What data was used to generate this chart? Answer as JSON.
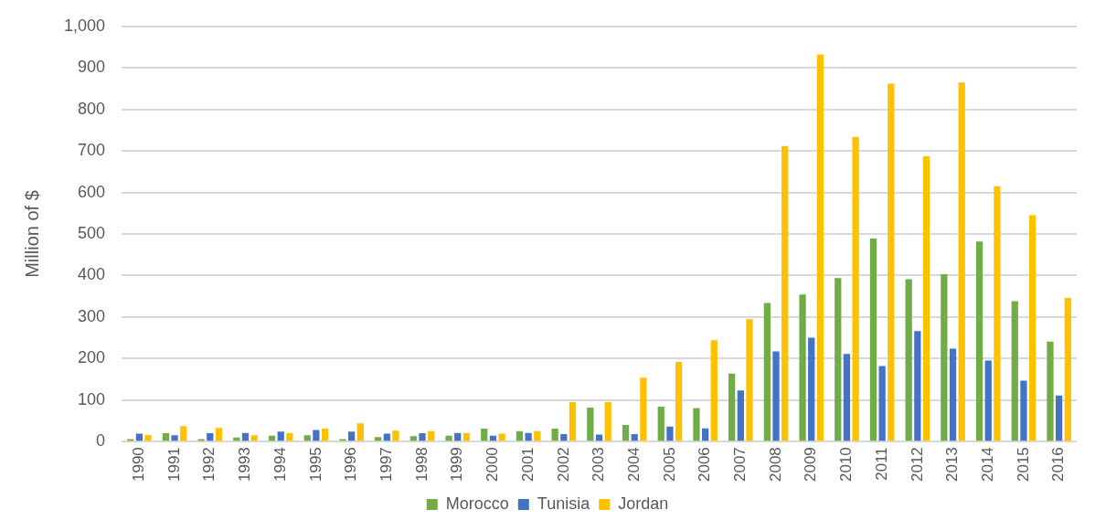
{
  "chart_data": {
    "type": "bar",
    "ylabel": "Million of $",
    "categories": [
      "1990",
      "1991",
      "1992",
      "1993",
      "1994",
      "1995",
      "1996",
      "1997",
      "1998",
      "1999",
      "2000",
      "2001",
      "2002",
      "2003",
      "2004",
      "2005",
      "2006",
      "2007",
      "2008",
      "2009",
      "2010",
      "2011",
      "2012",
      "2013",
      "2014",
      "2015",
      "2016"
    ],
    "series": [
      {
        "name": "Morocco",
        "color": "#70ad47",
        "values": [
          6,
          20,
          6,
          10,
          14,
          15,
          6,
          11,
          13,
          14,
          31,
          25,
          31,
          82,
          40,
          84,
          81,
          164,
          334,
          354,
          394,
          489,
          391,
          403,
          482,
          338,
          241
        ]
      },
      {
        "name": "Tunisia",
        "color": "#4472c4",
        "values": [
          19,
          15,
          20,
          21,
          24,
          28,
          24,
          19,
          20,
          21,
          14,
          21,
          18,
          17,
          18,
          36,
          32,
          123,
          217,
          250,
          211,
          182,
          266,
          224,
          195,
          147,
          111
        ]
      },
      {
        "name": "Jordan",
        "color": "#ffc000",
        "values": [
          16,
          37,
          33,
          15,
          21,
          31,
          44,
          26,
          25,
          21,
          19,
          25,
          95,
          95,
          154,
          192,
          244,
          295,
          712,
          932,
          734,
          862,
          687,
          865,
          615,
          545,
          346
        ]
      }
    ],
    "ylim": [
      0,
      1000
    ],
    "yticks": [
      0,
      {
        "value": 100,
        "label": "100"
      },
      200,
      300,
      400,
      500,
      600,
      700,
      800,
      900,
      {
        "value": 1000,
        "label": "1,000"
      }
    ],
    "grid": "y",
    "legend": "bottom"
  }
}
